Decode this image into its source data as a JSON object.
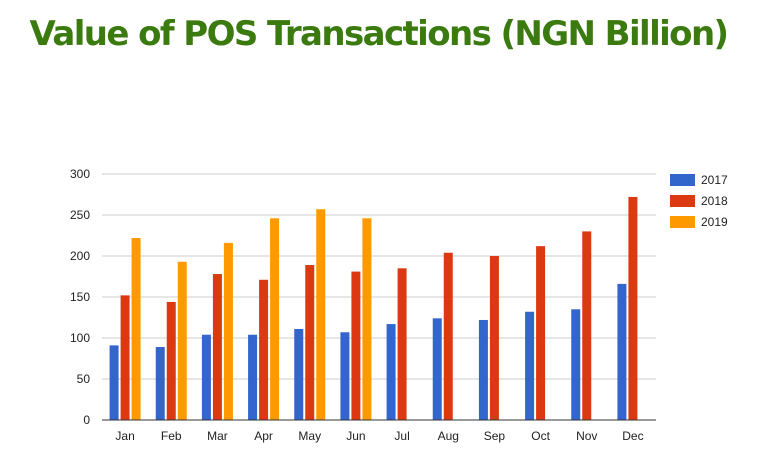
{
  "chart_data": {
    "type": "bar",
    "title": "Value of POS Transactions (NGN Billion)",
    "xlabel": "",
    "ylabel": "",
    "categories": [
      "Jan",
      "Feb",
      "Mar",
      "Apr",
      "May",
      "Jun",
      "Jul",
      "Aug",
      "Sep",
      "Oct",
      "Nov",
      "Dec"
    ],
    "series": [
      {
        "name": "2017",
        "color": "#3366cc",
        "values": [
          91,
          89,
          104,
          104,
          111,
          107,
          117,
          124,
          122,
          132,
          135,
          166
        ]
      },
      {
        "name": "2018",
        "color": "#dc3912",
        "values": [
          152,
          144,
          178,
          171,
          189,
          181,
          185,
          204,
          200,
          212,
          230,
          272
        ]
      },
      {
        "name": "2019",
        "color": "#ff9900",
        "values": [
          222,
          193,
          216,
          246,
          257,
          246,
          null,
          null,
          null,
          null,
          null,
          null
        ]
      }
    ],
    "ylim": [
      0,
      300
    ],
    "yticks": [
      0,
      50,
      100,
      150,
      200,
      250,
      300
    ],
    "grid": true,
    "legend": "right"
  }
}
